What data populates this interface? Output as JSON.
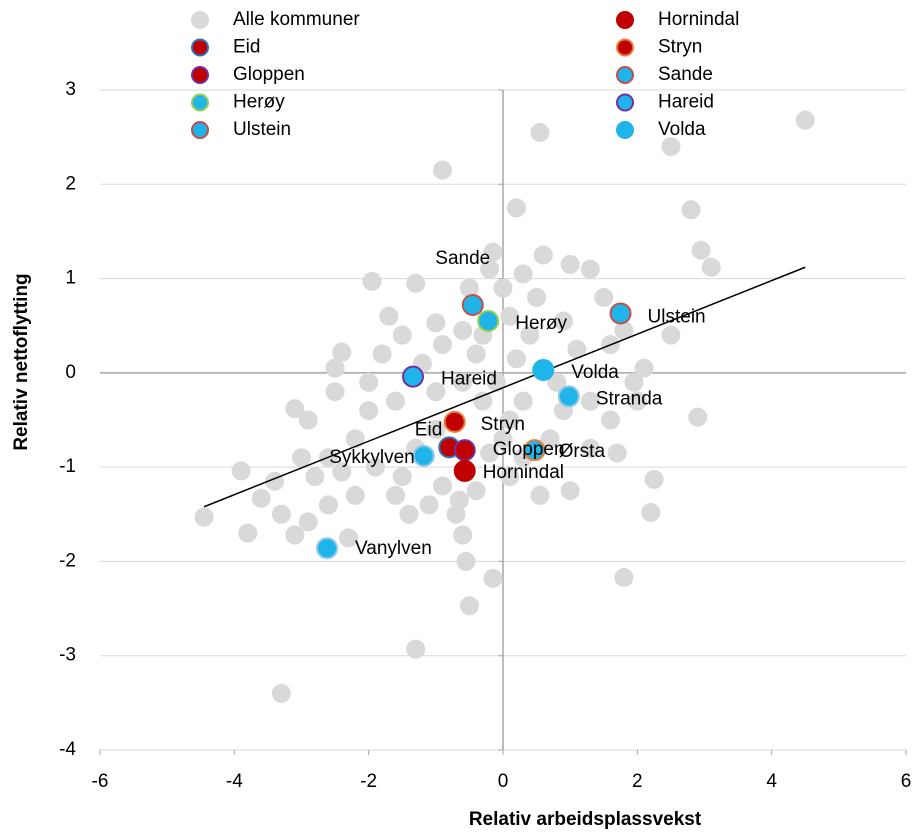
{
  "chart_data": {
    "type": "scatter",
    "xlabel": "Relativ arbeidsplassvekst",
    "ylabel": "Relativ nettoflytting",
    "xlim": [
      -6,
      6
    ],
    "ylim": [
      -4,
      3
    ],
    "xticks": [
      -6,
      -4,
      -2,
      0,
      2,
      4,
      6
    ],
    "yticks": [
      -4,
      -3,
      -2,
      -1,
      0,
      1,
      2,
      3
    ],
    "grid": true,
    "legend": "top",
    "series": [
      {
        "name": "Alle kommuner",
        "color": "#d9d9d9",
        "edgecolor": "#d9d9d9",
        "x": [
          4.5,
          0.55,
          2.5,
          -0.9,
          2.8,
          0.2,
          2.95,
          3.1,
          -1.95,
          -0.15,
          0.6,
          1.0,
          1.3,
          1.5,
          2.5,
          2.1,
          1.95,
          2.9,
          2.25,
          2.2,
          1.8,
          -4.45,
          -3.9,
          -3.8,
          -3.3,
          -1.3,
          -0.5,
          -0.15,
          -0.55,
          -0.6,
          -2.3,
          -3.1,
          -3.6,
          -3.3,
          -2.9,
          -3.1,
          -2.4,
          -2.5,
          -1.7,
          -1.5,
          -1.0,
          -0.6,
          0.0,
          0.3,
          -0.2,
          0.1,
          0.4,
          0.9,
          1.1,
          1.6,
          0.8,
          0.3,
          0.1,
          -0.3,
          -0.6,
          -1.0,
          -1.6,
          -2.0,
          -2.2,
          -2.6,
          -2.8,
          -3.4,
          -1.9,
          -1.6,
          -1.4,
          -1.1,
          -0.9,
          -0.7,
          -0.4,
          0.1,
          0.3,
          0.7,
          1.0,
          0.55,
          1.3,
          1.7,
          1.6,
          1.3,
          -2.5,
          -2.9,
          -2.0,
          -1.8,
          -1.2,
          -0.9,
          -0.4,
          0.2,
          -0.1,
          0.5,
          -0.5,
          -1.3,
          -0.3,
          -2.2,
          -2.6,
          -3.0,
          -1.3,
          -1.0,
          0.0,
          0.9,
          2.0,
          1.8,
          -1.5,
          -2.4,
          -0.2,
          -0.65
        ],
        "y": [
          2.68,
          2.55,
          2.4,
          2.15,
          1.73,
          1.75,
          1.3,
          1.12,
          0.97,
          1.28,
          1.25,
          1.15,
          1.1,
          0.8,
          0.4,
          0.05,
          -0.1,
          -0.47,
          -1.13,
          -1.48,
          -2.17,
          -1.53,
          -1.04,
          -1.7,
          -3.4,
          -2.93,
          -2.47,
          -2.18,
          -2.0,
          -1.72,
          -1.75,
          -1.72,
          -1.33,
          -1.5,
          -1.58,
          -0.38,
          0.22,
          0.05,
          0.6,
          0.4,
          0.53,
          0.45,
          0.9,
          1.05,
          1.1,
          0.6,
          0.4,
          0.55,
          0.25,
          0.3,
          -0.1,
          -0.3,
          -0.5,
          -0.3,
          -0.1,
          -0.2,
          -0.3,
          -0.4,
          -0.7,
          -0.9,
          -1.1,
          -1.15,
          -1.0,
          -1.3,
          -1.5,
          -1.4,
          -1.2,
          -1.5,
          -1.25,
          -1.1,
          -0.9,
          -0.7,
          -1.25,
          -1.3,
          -0.8,
          -0.85,
          -0.5,
          -0.3,
          -0.2,
          -0.5,
          -0.1,
          0.2,
          0.1,
          0.3,
          0.2,
          0.15,
          -0.1,
          0.8,
          0.9,
          0.95,
          0.4,
          -1.3,
          -1.4,
          -0.9,
          -0.8,
          -0.6,
          -0.7,
          -0.4,
          -0.3,
          0.45,
          -1.1,
          -1.05,
          -0.85,
          -1.35
        ]
      },
      {
        "name": "Eid",
        "color": "#c00000",
        "edgecolor": "#2e75b6",
        "x": [
          -0.8
        ],
        "y": [
          -0.79
        ]
      },
      {
        "name": "Gloppen",
        "color": "#c00000",
        "edgecolor": "#7030a0",
        "x": [
          -0.57
        ],
        "y": [
          -0.82
        ]
      },
      {
        "name": "Herøy",
        "color": "#1fb4ea",
        "edgecolor": "#92d050",
        "x": [
          -0.22
        ],
        "y": [
          0.55
        ]
      },
      {
        "name": "Ulstein",
        "color": "#1fb4ea",
        "edgecolor": "#c0504d",
        "x": [
          1.75
        ],
        "y": [
          0.63
        ]
      },
      {
        "name": "Hornindal",
        "color": "#c00000",
        "edgecolor": "#c00000",
        "x": [
          -0.57
        ],
        "y": [
          -1.04
        ]
      },
      {
        "name": "Stryn",
        "color": "#c00000",
        "edgecolor": "#ed7d31",
        "x": [
          -0.72
        ],
        "y": [
          -0.52
        ]
      },
      {
        "name": "Sande",
        "color": "#1fb4ea",
        "edgecolor": "#c0504d",
        "x": [
          -0.45
        ],
        "y": [
          0.72
        ]
      },
      {
        "name": "Hareid",
        "color": "#1fb4ea",
        "edgecolor": "#7030a0",
        "x": [
          -1.34
        ],
        "y": [
          -0.04
        ]
      },
      {
        "name": "Volda",
        "color": "#1fb4ea",
        "edgecolor": "#1fb4ea",
        "x": [
          0.6
        ],
        "y": [
          0.03
        ]
      }
    ],
    "extra_points": [
      {
        "label": "Stranda",
        "color": "#1fb4ea",
        "edgecolor": "#8fc8e8",
        "x": 0.98,
        "y": -0.25
      },
      {
        "label": "Ørsta",
        "color": "#1fb4ea",
        "edgecolor": "#ed7d31",
        "x": 0.47,
        "y": -0.82
      },
      {
        "label": "Sykkylven",
        "color": "#1fb4ea",
        "edgecolor": "#8fc8e8",
        "x": -1.18,
        "y": -0.88
      },
      {
        "label": "Vanylven",
        "color": "#1fb4ea",
        "edgecolor": "#8fc8e8",
        "x": -2.62,
        "y": -1.86
      }
    ],
    "trendline": {
      "x": [
        -4.45,
        4.5
      ],
      "y": [
        -1.42,
        1.12
      ]
    }
  }
}
